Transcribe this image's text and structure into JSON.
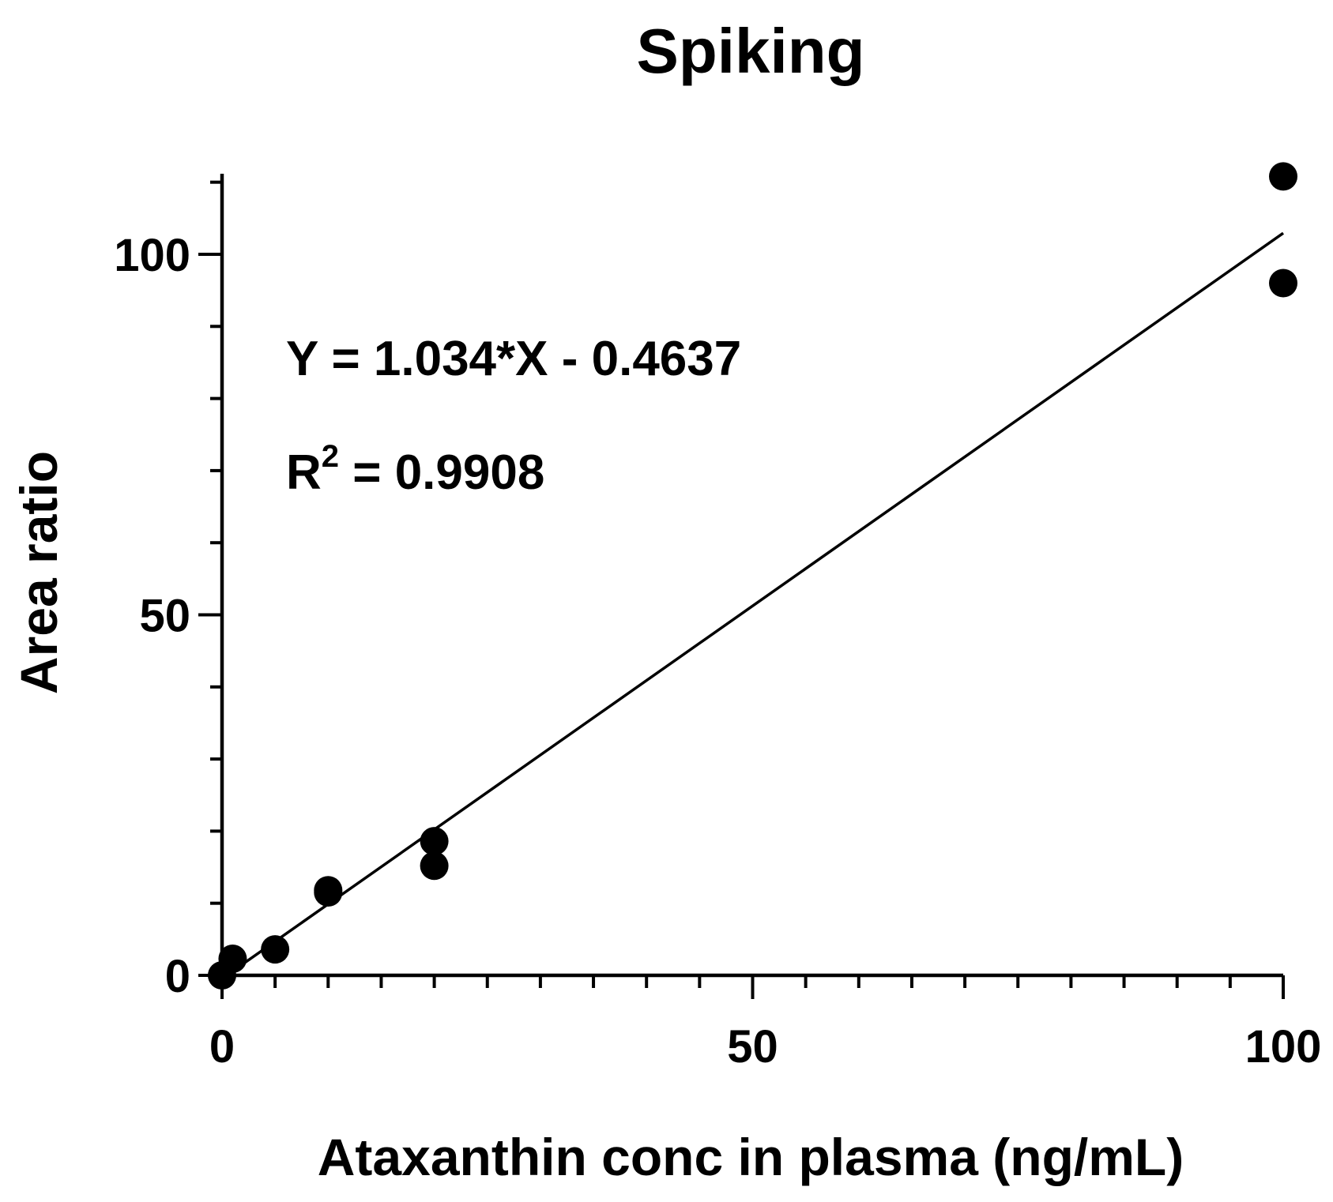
{
  "chart_data": {
    "type": "scatter",
    "title": "Spiking",
    "xlabel": "Ataxanthin conc in plasma (ng/mL)",
    "ylabel": "Area ratio",
    "xlim": [
      0,
      100
    ],
    "ylim": [
      0,
      111
    ],
    "x_ticks": [
      0,
      50,
      100
    ],
    "x_tick_labels": [
      "0",
      "50",
      "100"
    ],
    "x_minor_step": 5,
    "y_ticks": [
      0,
      50,
      100
    ],
    "y_tick_labels": [
      "0",
      "50",
      "100"
    ],
    "y_minor_step": 10,
    "grid": false,
    "points": [
      {
        "x": 0,
        "y": 0
      },
      {
        "x": 1,
        "y": 2.3
      },
      {
        "x": 5,
        "y": 3.6
      },
      {
        "x": 10,
        "y": 11.5
      },
      {
        "x": 10,
        "y": 11.8
      },
      {
        "x": 20,
        "y": 15.2
      },
      {
        "x": 20,
        "y": 18.6
      },
      {
        "x": 100,
        "y": 96.0
      },
      {
        "x": 100,
        "y": 110.8
      }
    ],
    "fit": {
      "slope": 1.034,
      "intercept": -0.4637,
      "x_range": [
        0,
        100
      ]
    },
    "annotations": {
      "equation": "Y = 1.034*X - 0.4637",
      "r2_prefix": "R",
      "r2_superscript": "2",
      "r2_value": " =  0.9908"
    },
    "colors": {
      "marker": "#000000",
      "line": "#000000",
      "axis": "#000000",
      "background": "#ffffff"
    }
  }
}
